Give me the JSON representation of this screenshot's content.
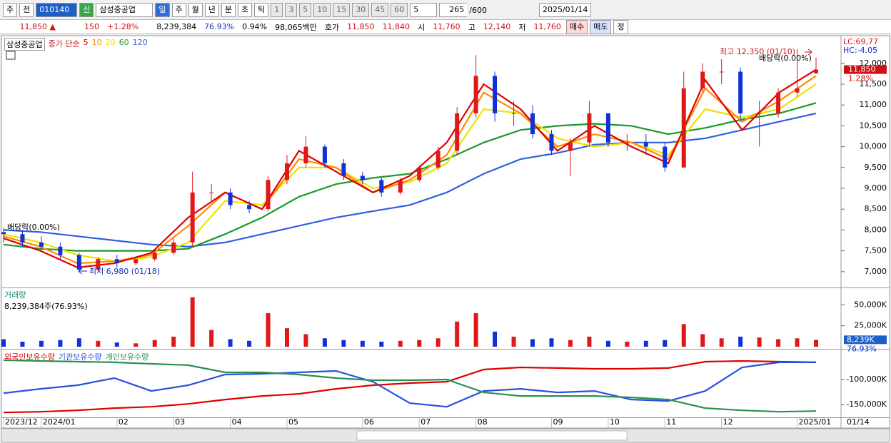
{
  "toolbar": {
    "period_options": [
      "주",
      "전"
    ],
    "code": "010140",
    "name_badge": "신",
    "name": "삼성중공업",
    "intervals": [
      "일",
      "주",
      "월",
      "년",
      "분",
      "초",
      "틱"
    ],
    "minutes": [
      "1",
      "3",
      "5",
      "10",
      "15",
      "30",
      "45",
      "60"
    ],
    "unit": "5",
    "count": "265",
    "max_count": "/600",
    "date": "2025/01/14"
  },
  "quote": {
    "price": "11,850 ▲",
    "change": "150",
    "change_pct": "+1.28%",
    "volume": "8,239,384",
    "volume_ratio": "76.93%",
    "turnover": "0.94%",
    "amount": "98,065백만",
    "hoga_label": "호가",
    "ask": "11,850",
    "bid": "11,840",
    "open_label": "시",
    "open": "11,760",
    "high_label": "고",
    "high": "12,140",
    "low_label": "저",
    "low": "11,760",
    "buttons": [
      "매수",
      "매도",
      "정"
    ]
  },
  "chart_data": [
    {
      "type": "candlestick",
      "title": "삼성중공업",
      "ma_label": "종가 단순",
      "categories": [
        "2023/12",
        null,
        "2024/01",
        null,
        null,
        null,
        "02",
        null,
        null,
        "03",
        null,
        null,
        "04",
        null,
        null,
        "05",
        null,
        null,
        null,
        "06",
        null,
        null,
        "07",
        null,
        null,
        "08",
        null,
        null,
        null,
        "09",
        null,
        null,
        "10",
        null,
        null,
        "11",
        null,
        null,
        "12",
        null,
        null,
        null,
        "2025/01",
        null
      ],
      "open": [
        7950,
        7900,
        7700,
        7600,
        7400,
        7050,
        7300,
        7200,
        7300,
        7450,
        7700,
        8900,
        8900,
        8600,
        8500,
        9200,
        9600,
        10000,
        9600,
        9300,
        9200,
        8900,
        9200,
        9500,
        9900,
        10800,
        11700,
        10800,
        10800,
        10300,
        9900,
        10100,
        10800,
        10100,
        10100,
        10000,
        9500,
        11400,
        11800,
        11800,
        10800,
        10800,
        11300,
        11760
      ],
      "high": [
        8050,
        8000,
        7850,
        7700,
        7450,
        7350,
        7400,
        7350,
        7500,
        7800,
        9400,
        9100,
        9000,
        8700,
        9300,
        9800,
        10250,
        10050,
        9700,
        9400,
        9250,
        9250,
        9550,
        10000,
        10950,
        12200,
        11800,
        11100,
        11000,
        10400,
        10200,
        11100,
        10800,
        10300,
        10300,
        10100,
        11800,
        12000,
        12100,
        11900,
        11100,
        11400,
        12350,
        12140
      ],
      "low": [
        7700,
        7600,
        7500,
        7300,
        6980,
        7000,
        7100,
        7150,
        7250,
        7400,
        7600,
        8700,
        8500,
        8400,
        8450,
        9100,
        9500,
        9500,
        9200,
        9100,
        8800,
        8850,
        9150,
        9450,
        9800,
        10700,
        10600,
        10500,
        10200,
        9800,
        9300,
        10000,
        10000,
        9900,
        9800,
        9400,
        9500,
        11300,
        11500,
        10600,
        10000,
        10700,
        11200,
        11760
      ],
      "close": [
        7900,
        7700,
        7600,
        7400,
        7050,
        7300,
        7200,
        7300,
        7450,
        7700,
        8900,
        8900,
        8600,
        8500,
        9200,
        9600,
        10000,
        9600,
        9300,
        9200,
        8900,
        9200,
        9500,
        9900,
        10800,
        11700,
        10800,
        10800,
        10300,
        9900,
        10100,
        10800,
        10100,
        10100,
        10000,
        9500,
        11400,
        11800,
        11800,
        10800,
        10800,
        11300,
        11400,
        11850
      ],
      "up_color": "#e01818",
      "down_color": "#1030d8",
      "ylim": [
        6620,
        12630
      ],
      "yticks": [
        {
          "value": 7000,
          "label": "7,000"
        },
        {
          "value": 7500,
          "label": "7,500"
        },
        {
          "value": 8000,
          "label": "8,000"
        },
        {
          "value": 8500,
          "label": "8,500"
        },
        {
          "value": 9000,
          "label": "9,000"
        },
        {
          "value": 9500,
          "label": "9,500"
        },
        {
          "value": 10000,
          "label": "10,000"
        },
        {
          "value": 10500,
          "label": "10,500"
        },
        {
          "value": 11000,
          "label": "11,000"
        },
        {
          "value": 11500,
          "label": "11,500"
        },
        {
          "value": 12000,
          "label": "12,000"
        }
      ],
      "lines": [
        {
          "name": "5",
          "color": "#e00000",
          "values": [
            7800,
            7500,
            7100,
            7200,
            7450,
            8300,
            8900,
            8500,
            9900,
            9400,
            8900,
            9300,
            10100,
            11500,
            10900,
            9900,
            10500,
            10000,
            9600,
            11600,
            10400,
            11300,
            11850
          ]
        },
        {
          "name": "10",
          "color": "#ff8c00",
          "values": [
            7850,
            7600,
            7200,
            7250,
            7400,
            8100,
            8900,
            8500,
            9700,
            9500,
            8900,
            9200,
            9800,
            11300,
            10800,
            10000,
            10300,
            10100,
            9700,
            11400,
            10600,
            11100,
            11700
          ]
        },
        {
          "name": "20",
          "color": "#f0e000",
          "values": [
            7900,
            7700,
            7400,
            7250,
            7350,
            7700,
            8700,
            8600,
            9500,
            9500,
            9000,
            9150,
            9600,
            10900,
            10800,
            10200,
            10000,
            10100,
            9800,
            10900,
            10700,
            10900,
            11500
          ]
        },
        {
          "name": "60",
          "color": "#1a9a2a",
          "values": [
            7650,
            7550,
            7500,
            7500,
            7500,
            7550,
            7900,
            8300,
            8800,
            9100,
            9250,
            9350,
            9700,
            10100,
            10400,
            10500,
            10550,
            10500,
            10300,
            10450,
            10650,
            10800,
            11050
          ]
        },
        {
          "name": "120",
          "color": "#3060e0",
          "values": [
            8000,
            7950,
            7850,
            7750,
            7650,
            7600,
            7700,
            7900,
            8100,
            8300,
            8450,
            8600,
            8900,
            9350,
            9700,
            9850,
            10050,
            10100,
            10100,
            10200,
            10400,
            10600,
            10800
          ]
        }
      ],
      "annotations": [
        "최고 12,350 (01/10)",
        "최저 6,980 (01/18)",
        "배당락(0.00%)",
        "배당락(0.00%)"
      ],
      "axis_info": [
        "LC:69,77",
        "HC:-4.05"
      ],
      "last_label": "11,850",
      "last_change": "1.28%",
      "x_end_label": "01/14"
    },
    {
      "type": "bar",
      "title": "거래량",
      "subtitle": "8,239,384주(76.93%)",
      "values": [
        9000,
        6000,
        7000,
        8000,
        10000,
        7000,
        5000,
        4000,
        8000,
        12000,
        59000,
        20000,
        9000,
        7000,
        40000,
        22000,
        15000,
        10000,
        8000,
        7000,
        6000,
        7000,
        8000,
        10000,
        30000,
        40000,
        18000,
        12000,
        9000,
        10000,
        8000,
        12000,
        7000,
        6000,
        7000,
        8000,
        27000,
        15000,
        10000,
        12000,
        11000,
        9000,
        10000,
        8239
      ],
      "ylim": [
        0,
        69000
      ],
      "yticks": [
        {
          "value": 25000,
          "label": "25,000K"
        },
        {
          "value": 50000,
          "label": "50,000K"
        }
      ],
      "last_label": "8,239K",
      "last_ratio": "76.93%"
    },
    {
      "type": "line",
      "ylim": [
        -174000,
        -43000
      ],
      "yticks": [
        {
          "value": -150000,
          "label": "-150,000K"
        },
        {
          "value": -100000,
          "label": "-100,000K"
        }
      ],
      "series": [
        {
          "name": "외국인보유수량",
          "color": "#e00000",
          "values": [
            -165700,
            -164300,
            -161400,
            -157100,
            -154300,
            -148600,
            -140000,
            -132900,
            -128600,
            -118600,
            -111400,
            -107100,
            -104300,
            -80000,
            -75700,
            -77100,
            -78600,
            -78600,
            -77100,
            -64300,
            -62900,
            -64300,
            -65700
          ]
        },
        {
          "name": "기관보유수량",
          "color": "#2850e0",
          "values": [
            -127100,
            -118600,
            -111400,
            -97100,
            -122900,
            -111400,
            -90000,
            -88600,
            -85700,
            -82900,
            -104300,
            -147100,
            -154300,
            -122900,
            -118600,
            -125700,
            -122900,
            -140000,
            -142900,
            -122900,
            -75700,
            -65700,
            -65700
          ]
        },
        {
          "name": "개인보유수량",
          "color": "#2a9050",
          "values": [
            -61400,
            -62900,
            -64300,
            -65700,
            -68600,
            -71400,
            -85700,
            -85700,
            -90000,
            -97100,
            -101400,
            -101400,
            -100000,
            -125700,
            -132900,
            -132900,
            -132900,
            -135700,
            -140000,
            -157100,
            -161400,
            -164300,
            -162900
          ]
        }
      ]
    }
  ]
}
